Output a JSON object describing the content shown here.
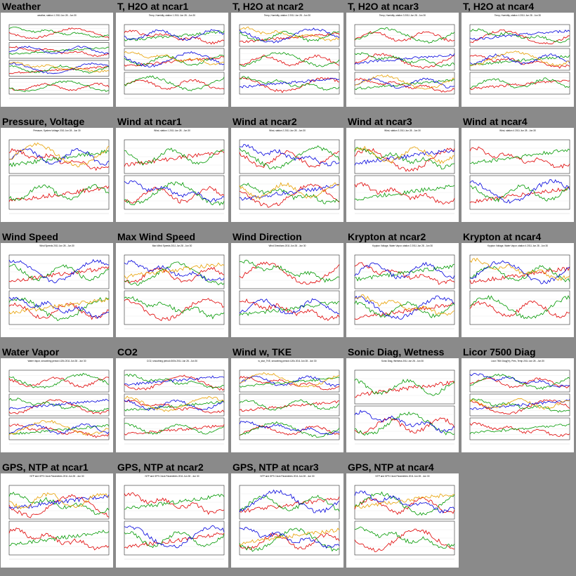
{
  "page_title": "",
  "colors": {
    "background": "#8a8a8a",
    "thumb_bg": "#ffffff",
    "series": [
      "#e00000",
      "#009900",
      "#0000dd",
      "#e8a000",
      "#000000"
    ]
  },
  "tiles": [
    {
      "title": "Weather",
      "header": "weather, station 1 2011 Jun 28 - Jun 30",
      "panels": 4
    },
    {
      "title": "T, H2O at ncar1",
      "header": "Temp, Humidity, station 1 2011 Jun 28 - Jun 30",
      "panels": 3
    },
    {
      "title": "T, H2O at ncar2",
      "header": "Temp, Humidity, station 2 2011 Jun 28 - Jun 30",
      "panels": 3
    },
    {
      "title": "T, H2O at ncar3",
      "header": "Temp, Humidity, station 3 2011 Jun 28 - Jun 30",
      "panels": 3
    },
    {
      "title": "T, H2O at ncar4",
      "header": "Temp, Humidity, station 4 2011 Jun 28 - Jun 30",
      "panels": 3
    },
    {
      "title": "Pressure, Voltage",
      "header": "Pressure, System Voltage 2011 Jun 28 - Jun 30",
      "panels": 2
    },
    {
      "title": "Wind at ncar1",
      "header": "Wind, station 1 2011 Jun 28 - Jun 30",
      "panels": 2
    },
    {
      "title": "Wind at ncar2",
      "header": "Wind, station 2 2011 Jun 28 - Jun 30",
      "panels": 2
    },
    {
      "title": "Wind at ncar3",
      "header": "Wind, station 3 2011 Jun 28 - Jun 30",
      "panels": 2
    },
    {
      "title": "Wind at ncar4",
      "header": "Wind, station 4 2011 Jun 28 - Jun 30",
      "panels": 2
    },
    {
      "title": "Wind Speed",
      "header": "Wind Speeds 2011 Jun 28 - Jun 30",
      "panels": 2
    },
    {
      "title": "Max Wind Speed",
      "header": "Max Wind Speeds 2011 Jun 28 - Jun 30",
      "panels": 2
    },
    {
      "title": "Wind Direction",
      "header": "Wind Directions 2011 Jun 28 - Jun 30",
      "panels": 2
    },
    {
      "title": "Krypton at ncar2",
      "header": "Krypton Voltage, Water Vapor, station 2 2011 Jun 28 - Jun 30",
      "panels": 2
    },
    {
      "title": "Krypton at ncar4",
      "header": "Krypton Voltage, Water Vapor, station 4 2011 Jun 28 - Jun 30",
      "panels": 2
    },
    {
      "title": "Water Vapor",
      "header": "Water Vapor, smoothing period=120s 2011 Jun 28 - Jun 30",
      "panels": 3
    },
    {
      "title": "CO2",
      "header": "CO2, smoothing period=300s 2011 Jun 28 - Jun 30",
      "panels": 3
    },
    {
      "title": "Wind w, TKE",
      "header": "w_star_TKE, smoothing period=120s 2011 Jun 28 - Jun 30",
      "panels": 3
    },
    {
      "title": "Sonic Diag, Wetness",
      "header": "Sonic Diag, Wetness 2011 Jun 28 - Jun 30",
      "panels": 2
    },
    {
      "title": "Licor 7500 Diag",
      "header": "Licor 7500 Diag(%), Pres, Temp 2011 Jun 28 - Jun 30",
      "panels": 3
    },
    {
      "title": "GPS, NTP at ncar1",
      "header": "NTP and GPS Clock Parameters 2011 Jun 28 - Jun 30",
      "panels": 2
    },
    {
      "title": "GPS, NTP at ncar2",
      "header": "NTP and GPS Clock Parameters 2011 Jun 28 - Jun 30",
      "panels": 2
    },
    {
      "title": "GPS, NTP at ncar3",
      "header": "NTP and GPS Clock Parameters 2011 Jun 28 - Jun 30",
      "panels": 2
    },
    {
      "title": "GPS, NTP at ncar4",
      "header": "NTP and GPS Clock Parameters 2011 Jun 28 - Jun 30",
      "panels": 2
    }
  ]
}
